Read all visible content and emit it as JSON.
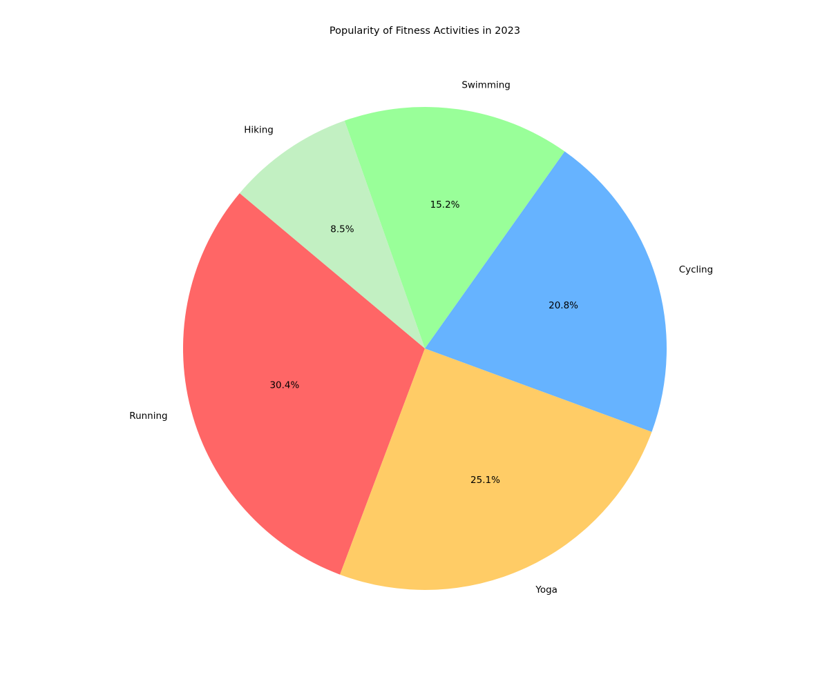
{
  "chart_data": {
    "type": "pie",
    "title": "Popularity of Fitness Activities in 2023",
    "start_angle_deg": 140,
    "direction": "counterclockwise",
    "pct_format": "one decimal with % sign",
    "slices": [
      {
        "label": "Running",
        "value": 30.4,
        "pct_label": "30.4%",
        "color": "#ff6666"
      },
      {
        "label": "Yoga",
        "value": 25.1,
        "pct_label": "25.1%",
        "color": "#ffcc66"
      },
      {
        "label": "Cycling",
        "value": 20.8,
        "pct_label": "20.8%",
        "color": "#66b3ff"
      },
      {
        "label": "Swimming",
        "value": 15.2,
        "pct_label": "15.2%",
        "color": "#99ff99"
      },
      {
        "label": "Hiking",
        "value": 8.5,
        "pct_label": "8.5%",
        "color": "#c2f0c2"
      }
    ]
  }
}
